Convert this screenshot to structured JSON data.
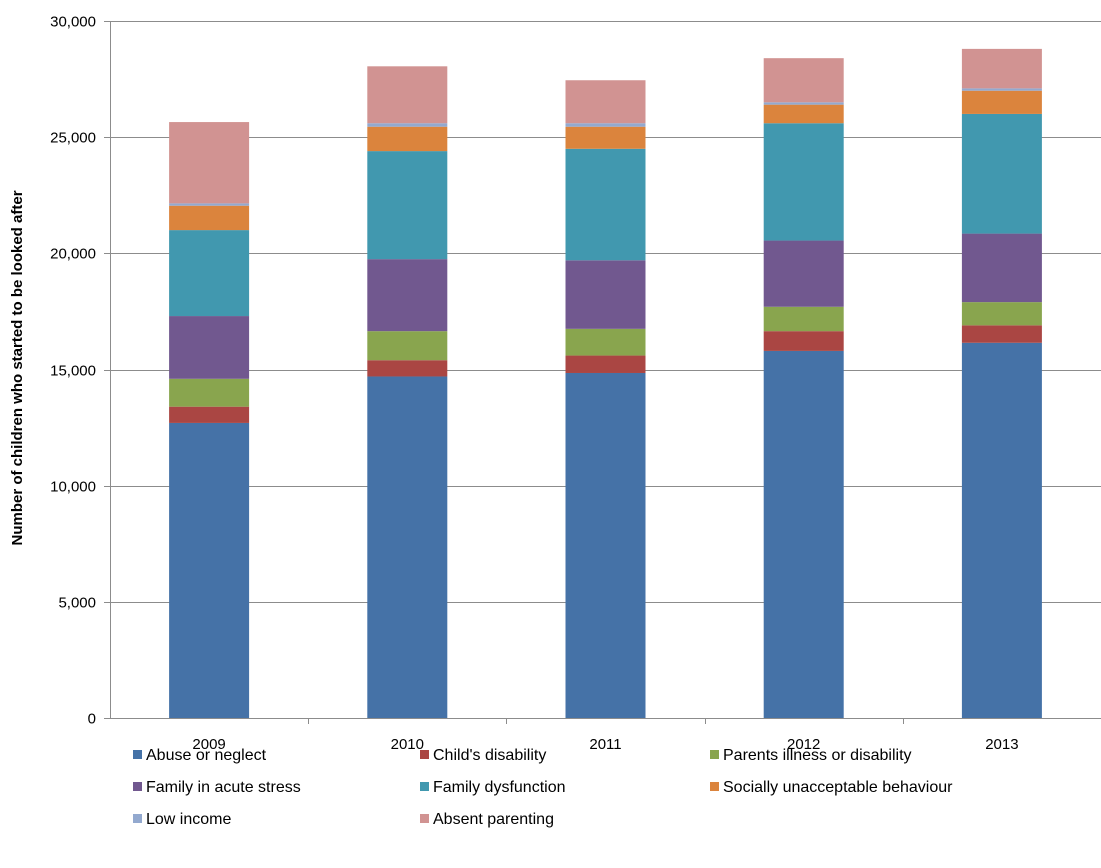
{
  "chart_data": {
    "type": "bar",
    "stacked": true,
    "title": "",
    "xlabel": "",
    "ylabel": "Number of children who started to be looked after",
    "ylim": [
      0,
      30000
    ],
    "yticks": [
      0,
      5000,
      10000,
      15000,
      20000,
      25000,
      30000
    ],
    "ytick_labels": [
      "0",
      "5,000",
      "10,000",
      "15,000",
      "20,000",
      "25,000",
      "30,000"
    ],
    "grid": true,
    "legend_position": "bottom",
    "categories": [
      "2009",
      "2010",
      "2011",
      "2012",
      "2013"
    ],
    "series": [
      {
        "name": "Abuse or neglect",
        "color": "#4572A7",
        "values": [
          12700,
          14700,
          14850,
          15800,
          16150
        ]
      },
      {
        "name": "Child's disability",
        "color": "#AA4643",
        "values": [
          700,
          700,
          750,
          850,
          750
        ]
      },
      {
        "name": "Parents illness or disability",
        "color": "#89A54E",
        "values": [
          1200,
          1250,
          1150,
          1050,
          1000
        ]
      },
      {
        "name": "Family in acute stress",
        "color": "#71588F",
        "values": [
          2700,
          3100,
          2950,
          2850,
          2950
        ]
      },
      {
        "name": "Family dysfunction",
        "color": "#4198AF",
        "values": [
          3700,
          4650,
          4800,
          5050,
          5150
        ]
      },
      {
        "name": "Socially unacceptable behaviour",
        "color": "#DB843D",
        "values": [
          1050,
          1050,
          950,
          800,
          1000
        ]
      },
      {
        "name": "Low income",
        "color": "#93A9CF",
        "values": [
          100,
          150,
          150,
          100,
          100
        ]
      },
      {
        "name": "Absent parenting",
        "color": "#D19392",
        "values": [
          3500,
          2450,
          1850,
          1900,
          1700
        ]
      }
    ]
  }
}
